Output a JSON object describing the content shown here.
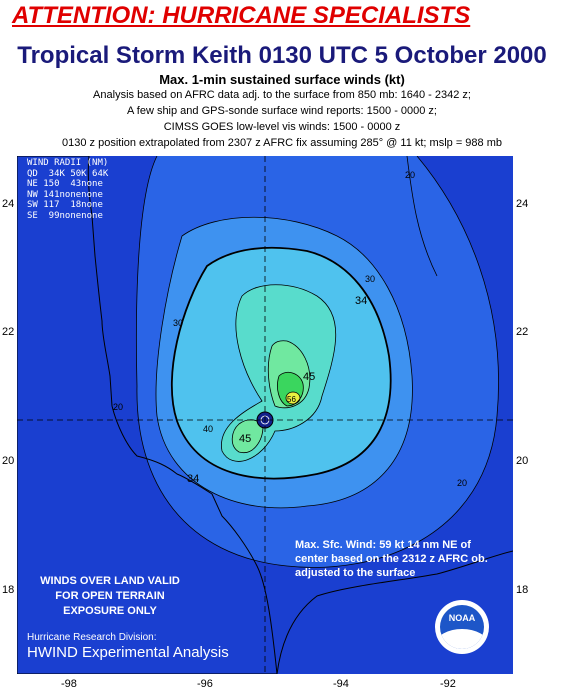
{
  "header": {
    "attention": "ATTENTION: HURRICANE SPECIALISTS",
    "title": "Tropical Storm Keith 0130 UTC 5 October 2000",
    "subtitle": "Max. 1-min sustained surface winds (kt)",
    "lines": [
      "Analysis based on AFRC data adj. to the surface from 850 mb:  1640 - 2342 z;",
      "A few ship and GPS-sonde surface wind reports:  1500 - 0000 z;",
      "CIMSS GOES low-level vis winds:  1500 - 0000 z",
      "0130 z position extrapolated from 2307 z  AFRC fix assuming 285° @ 11 kt; mslp = 988 mb"
    ]
  },
  "axes": {
    "x_ticks": [
      "-98",
      "-96",
      "-94",
      "-92"
    ],
    "y_ticks": [
      "24",
      "22",
      "20",
      "18"
    ]
  },
  "wind_radii": {
    "header": "WIND RADII (NM)",
    "cols": "QD  34K 50K 64K",
    "rows": [
      "NE 150  43none",
      "NW 141nonenone",
      "SW 117  18none",
      "SE  99nonenone"
    ]
  },
  "contour_labels": {
    "c20": "20",
    "c30": "30",
    "c34": "34",
    "c40": "40",
    "c45": "45",
    "c56": "56"
  },
  "annotations": {
    "max_wind": "Max. Sfc. Wind: 59 kt 14 nm NE of center based on the 2312 z AFRC ob. adjusted to the surface",
    "land_note": "WINDS OVER LAND VALID FOR OPEN TERRAIN EXPOSURE ONLY",
    "division": "Hurricane Research Division:",
    "product": "HWIND Experimental Analysis",
    "logo": "NOAA"
  },
  "colors": {
    "outer_blue": "#1a3fd0",
    "mid_blue": "#2a64e6",
    "light_blue": "#3e92f0",
    "cyan": "#4fc2ee",
    "teal": "#58dccc",
    "green_light": "#70e8a0",
    "green": "#3ad65e",
    "yellow": "#e8f040"
  }
}
